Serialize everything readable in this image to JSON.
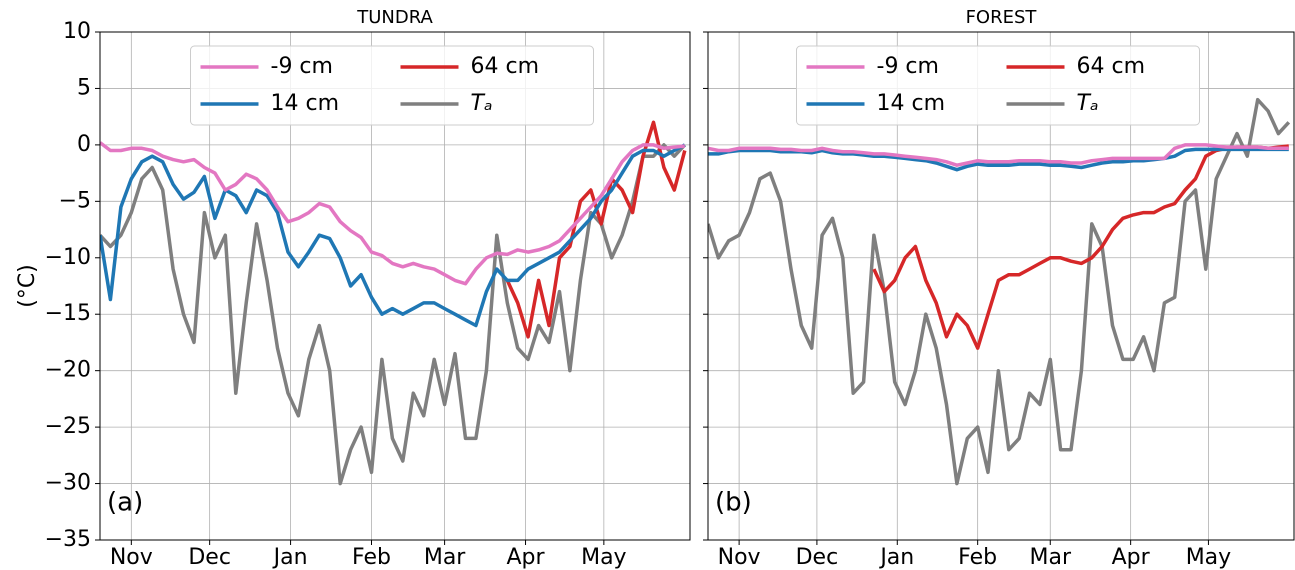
{
  "chart_data": [
    {
      "type": "line",
      "title": "TUNDRA",
      "ylabel": "(°C)",
      "annotation": "(a)",
      "x": [
        -12,
        -8,
        -4,
        0,
        4,
        8,
        12,
        16,
        20,
        24,
        28,
        32,
        36,
        40,
        44,
        48,
        52,
        56,
        60,
        64,
        68,
        72,
        76,
        80,
        84,
        88,
        92,
        96,
        100,
        104,
        108,
        112,
        116,
        120,
        124,
        128,
        132,
        136,
        140,
        144,
        148,
        152,
        156,
        160,
        164,
        168,
        172,
        176,
        180,
        184,
        188,
        192,
        196,
        200,
        204,
        208,
        212
      ],
      "xlim": [
        -12,
        214
      ],
      "xticks": [
        {
          "value": 0,
          "label": "Nov"
        },
        {
          "value": 30,
          "label": "Dec"
        },
        {
          "value": 61,
          "label": "Jan"
        },
        {
          "value": 92,
          "label": "Feb"
        },
        {
          "value": 120,
          "label": "Mar"
        },
        {
          "value": 151,
          "label": "Apr"
        },
        {
          "value": 181,
          "label": "May"
        }
      ],
      "ylim": [
        -35,
        10
      ],
      "yticks": [
        {
          "value": -35,
          "label": "−35"
        },
        {
          "value": -30,
          "label": "−30"
        },
        {
          "value": -25,
          "label": "−25"
        },
        {
          "value": -20,
          "label": "−20"
        },
        {
          "value": -15,
          "label": "−15"
        },
        {
          "value": -10,
          "label": "−10"
        },
        {
          "value": -5,
          "label": "−5"
        },
        0,
        5,
        10
      ],
      "grid": true,
      "legend": "upper center",
      "series": [
        {
          "name": "-9 cm",
          "color": "#e377c2",
          "values": [
            0.2,
            -0.5,
            -0.5,
            -0.3,
            -0.3,
            -0.5,
            -1,
            -1.3,
            -1.5,
            -1.3,
            -2,
            -2.5,
            -4,
            -3.5,
            -2.6,
            -3,
            -4,
            -5.5,
            -6.8,
            -6.5,
            -6,
            -5.2,
            -5.5,
            -6.8,
            -7.6,
            -8.2,
            -9.5,
            -9.8,
            -10.5,
            -10.8,
            -10.5,
            -10.8,
            -11,
            -11.5,
            -12,
            -12.3,
            -11,
            -10,
            -9.6,
            -9.7,
            -9.3,
            -9.5,
            -9.3,
            -9,
            -8.5,
            -7.5,
            -6.5,
            -5.5,
            -4.5,
            -3,
            -1.5,
            -0.5,
            0,
            0,
            -0.3,
            -0.2,
            -0.1
          ]
        },
        {
          "name": "14 cm",
          "color": "#1f77b4",
          "values": [
            -8,
            -13.7,
            -5.5,
            -3,
            -1.5,
            -1,
            -1.5,
            -3.5,
            -4.8,
            -4.2,
            -2.8,
            -6.5,
            -4,
            -4.5,
            -6,
            -4,
            -4.5,
            -6,
            -9.5,
            -10.8,
            -9.5,
            -8,
            -8.3,
            -10,
            -12.5,
            -11.5,
            -13.5,
            -15,
            -14.5,
            -15,
            -14.5,
            -14,
            -14,
            -14.5,
            -15,
            -15.5,
            -16,
            -13,
            -11,
            -12,
            -12,
            -11,
            -10.5,
            -10,
            -9.5,
            -8.5,
            -7.5,
            -6.5,
            -5,
            -4,
            -2.5,
            -1,
            -0.5,
            -0.5,
            -1,
            -0.5,
            0
          ]
        },
        {
          "name": "64 cm",
          "color": "#d62728",
          "values": [
            null,
            null,
            null,
            null,
            null,
            null,
            null,
            null,
            null,
            null,
            null,
            null,
            null,
            null,
            null,
            null,
            null,
            null,
            null,
            null,
            null,
            null,
            null,
            null,
            null,
            null,
            null,
            null,
            null,
            null,
            null,
            null,
            null,
            null,
            null,
            null,
            null,
            null,
            null,
            -12,
            -14,
            -17,
            -12,
            -16,
            -10,
            -9,
            -5,
            -4,
            -7,
            -3,
            -4,
            -6,
            -1,
            2,
            -2,
            -4,
            -0.5
          ]
        },
        {
          "name": "Tₐ",
          "color": "#7f7f7f",
          "values": [
            -8,
            -9,
            -8,
            -6,
            -3,
            -2,
            -4,
            -11,
            -15,
            -17.5,
            -6,
            -10,
            -8,
            -22,
            -14,
            -7,
            -12,
            -18,
            -22,
            -24,
            -19,
            -16,
            -20,
            -30,
            -27,
            -25,
            -29,
            -19,
            -26,
            -28,
            -22,
            -24,
            -19,
            -23,
            -18.5,
            -26,
            -26,
            -20,
            -8,
            -14,
            -18,
            -19,
            -16,
            -17.5,
            -13,
            -20,
            -12,
            -6,
            -7,
            -10,
            -8,
            -5,
            -1,
            -1,
            0,
            -1,
            0
          ]
        }
      ]
    },
    {
      "type": "line",
      "title": "FOREST",
      "annotation": "(b)",
      "x": [
        -12,
        -8,
        -4,
        0,
        4,
        8,
        12,
        16,
        20,
        24,
        28,
        32,
        36,
        40,
        44,
        48,
        52,
        56,
        60,
        64,
        68,
        72,
        76,
        80,
        84,
        88,
        92,
        96,
        100,
        104,
        108,
        112,
        116,
        120,
        124,
        128,
        132,
        136,
        140,
        144,
        148,
        152,
        156,
        160,
        164,
        168,
        172,
        176,
        180,
        184,
        188,
        192,
        196,
        200,
        204,
        208,
        212
      ],
      "xlim": [
        -12,
        214
      ],
      "xticks": [
        {
          "value": 0,
          "label": "Nov"
        },
        {
          "value": 30,
          "label": "Dec"
        },
        {
          "value": 61,
          "label": "Jan"
        },
        {
          "value": 92,
          "label": "Feb"
        },
        {
          "value": 120,
          "label": "Mar"
        },
        {
          "value": 151,
          "label": "Apr"
        },
        {
          "value": 181,
          "label": "May"
        }
      ],
      "ylim": [
        -35,
        10
      ],
      "yticks": [
        -35,
        -30,
        -25,
        -20,
        -15,
        -10,
        -5,
        0,
        5,
        10
      ],
      "grid": true,
      "legend": "upper center",
      "series": [
        {
          "name": "-9 cm",
          "color": "#e377c2",
          "values": [
            -0.3,
            -0.5,
            -0.5,
            -0.3,
            -0.3,
            -0.3,
            -0.3,
            -0.4,
            -0.4,
            -0.5,
            -0.5,
            -0.3,
            -0.5,
            -0.6,
            -0.6,
            -0.7,
            -0.8,
            -0.8,
            -0.9,
            -1,
            -1.1,
            -1.2,
            -1.3,
            -1.5,
            -1.8,
            -1.6,
            -1.4,
            -1.5,
            -1.5,
            -1.5,
            -1.4,
            -1.4,
            -1.4,
            -1.5,
            -1.5,
            -1.6,
            -1.6,
            -1.4,
            -1.3,
            -1.2,
            -1.2,
            -1.2,
            -1.2,
            -1.2,
            -1.2,
            -0.3,
            0,
            0,
            0,
            -0.1,
            -0.2,
            -0.2,
            -0.2,
            -0.2,
            -0.3,
            -0.3,
            -0.3
          ]
        },
        {
          "name": "14 cm",
          "color": "#1f77b4",
          "values": [
            -0.8,
            -0.8,
            -0.6,
            -0.5,
            -0.5,
            -0.5,
            -0.5,
            -0.6,
            -0.6,
            -0.6,
            -0.7,
            -0.5,
            -0.7,
            -0.8,
            -0.8,
            -0.9,
            -1,
            -1,
            -1.1,
            -1.2,
            -1.3,
            -1.4,
            -1.6,
            -1.9,
            -2.2,
            -1.9,
            -1.7,
            -1.8,
            -1.8,
            -1.8,
            -1.7,
            -1.7,
            -1.7,
            -1.8,
            -1.8,
            -1.9,
            -2,
            -1.8,
            -1.6,
            -1.5,
            -1.5,
            -1.4,
            -1.4,
            -1.3,
            -1.2,
            -1,
            -0.5,
            -0.4,
            -0.4,
            -0.4,
            -0.4,
            -0.4,
            -0.4,
            -0.4,
            -0.4,
            -0.4,
            -0.4
          ]
        },
        {
          "name": "64 cm",
          "color": "#d62728",
          "values": [
            null,
            null,
            null,
            null,
            null,
            null,
            null,
            null,
            null,
            null,
            null,
            null,
            null,
            null,
            null,
            null,
            -11,
            -13,
            -12,
            -10,
            -9,
            -12,
            -14,
            -17,
            -15,
            -16,
            -18,
            -15,
            -12,
            -11.5,
            -11.5,
            -11,
            -10.5,
            -10,
            -10,
            -10.3,
            -10.5,
            -10,
            -9,
            -7.5,
            -6.5,
            -6.2,
            -6,
            -6,
            -5.5,
            -5.2,
            -4,
            -3,
            -1,
            -0.5,
            -0.3,
            -0.2,
            -0.2,
            -0.2,
            -0.3,
            -0.2,
            -0.1
          ]
        },
        {
          "name": "Tₐ",
          "color": "#7f7f7f",
          "values": [
            -7,
            -10,
            -8.5,
            -8,
            -6,
            -3,
            -2.5,
            -5,
            -11,
            -16,
            -18,
            -8,
            -6.5,
            -10,
            -22,
            -21,
            -8,
            -13,
            -21,
            -23,
            -20,
            -15,
            -18,
            -23,
            -30,
            -26,
            -25,
            -29,
            -20,
            -27,
            -26,
            -22,
            -23,
            -19,
            -27,
            -27,
            -20,
            -7,
            -9,
            -16,
            -19,
            -19,
            -17,
            -20,
            -14,
            -13.5,
            -5,
            -4,
            -11,
            -3,
            -1,
            1,
            -1,
            4,
            3,
            1,
            2
          ]
        }
      ]
    }
  ]
}
